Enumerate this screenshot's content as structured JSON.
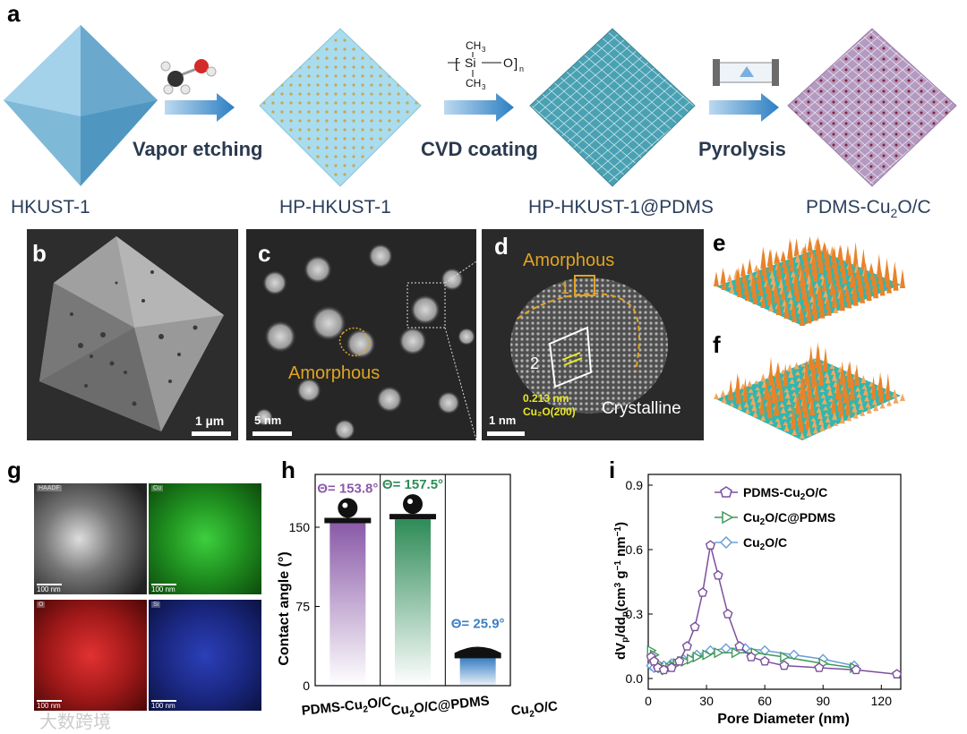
{
  "panel_a": {
    "letter": "a",
    "steps": [
      "Vapor etching",
      "CVD coating",
      "Pyrolysis"
    ],
    "captions": {
      "hkust1": "HKUST-1",
      "hp_hkust1": "HP-HKUST-1",
      "hp_pdms": "HP-HKUST-1@PDMS",
      "pdms_cu2o_c_main": "PDMS-Cu",
      "pdms_cu2o_c_sub": "2",
      "pdms_cu2o_c_end": "O/C"
    },
    "pdms_formula": {
      "ch3_top": "CH",
      "ch3_bottom": "CH",
      "three": "3",
      "si": "Si",
      "o": "O",
      "n": "n"
    }
  },
  "panel_b": {
    "letter": "b",
    "scale": "1 µm"
  },
  "panel_c": {
    "letter": "c",
    "scale": "5 nm",
    "annotation": "Amorphous"
  },
  "panel_d": {
    "letter": "d",
    "scale": "1 nm",
    "amorphous": "Amorphous",
    "crystalline": "Crystalline",
    "region1": "1",
    "region2": "2",
    "d_spacing": "0.213 nm",
    "plane": "Cu₂O(200)"
  },
  "panel_e": {
    "letter": "e"
  },
  "panel_f": {
    "letter": "f"
  },
  "panel_g": {
    "letter": "g",
    "scale": "100 nm",
    "maps": [
      "HAADF",
      "Cu",
      "O",
      "Si"
    ]
  },
  "panel_h": {
    "letter": "h",
    "chart_data": {
      "type": "bar",
      "categories": [
        "PDMS-Cu2O/C",
        "Cu2O/C@PDMS",
        "Cu2O/C"
      ],
      "values": [
        153.8,
        157.5,
        25.9
      ],
      "value_labels": [
        "Θ= 153.8°",
        "Θ= 157.5°",
        "Θ= 25.9°"
      ],
      "colors": [
        "#8a5aa8",
        "#2e8b57",
        "#3a7fc4"
      ],
      "ylabel": "Contact angle (°)",
      "yticks": [
        0,
        75,
        150
      ],
      "ylim": [
        0,
        200
      ]
    },
    "cat_labels": [
      {
        "a": "PDMS-Cu",
        "b": "2",
        "c": "O/C"
      },
      {
        "a": "Cu",
        "b": "2",
        "c": "O/C@PDMS"
      },
      {
        "a": "Cu",
        "b": "2",
        "c": "O/C"
      }
    ]
  },
  "panel_i": {
    "letter": "i",
    "chart_data": {
      "type": "line",
      "xlabel": "Pore Diameter (nm)",
      "ylabel": "dVp/ddp (cm³ g⁻¹ nm⁻¹)",
      "xlim": [
        0,
        130
      ],
      "ylim": [
        -0.05,
        0.95
      ],
      "xticks": [
        0,
        30,
        60,
        90,
        120
      ],
      "yticks": [
        0.0,
        0.3,
        0.6,
        0.9
      ],
      "series": [
        {
          "name": "PDMS-Cu2O/C",
          "color": "#7b4f9e",
          "marker": "pentagon",
          "x": [
            1.5,
            3,
            5,
            8,
            12,
            16,
            20,
            24,
            28,
            32,
            36,
            41,
            47,
            53,
            60,
            70,
            88,
            107,
            128
          ],
          "y": [
            0.1,
            0.08,
            0.05,
            0.04,
            0.05,
            0.08,
            0.15,
            0.24,
            0.4,
            0.62,
            0.48,
            0.3,
            0.15,
            0.1,
            0.08,
            0.06,
            0.05,
            0.04,
            0.02
          ]
        },
        {
          "name": "Cu2O/C@PDMS",
          "color": "#3f9a5a",
          "marker": "triangle-right",
          "x": [
            1.5,
            3,
            5,
            7,
            9,
            11,
            13,
            15,
            17,
            19,
            22,
            25,
            30,
            36,
            45,
            55,
            70,
            90,
            106
          ],
          "y": [
            0.13,
            0.11,
            0.07,
            0.05,
            0.04,
            0.05,
            0.06,
            0.07,
            0.08,
            0.08,
            0.09,
            0.1,
            0.11,
            0.12,
            0.12,
            0.12,
            0.1,
            0.07,
            0.05
          ]
        },
        {
          "name": "Cu2O/C",
          "color": "#6a9fd8",
          "marker": "diamond",
          "x": [
            1.5,
            3,
            5,
            8,
            12,
            18,
            25,
            32,
            40,
            50,
            60,
            75,
            90,
            106
          ],
          "y": [
            0.06,
            0.05,
            0.05,
            0.06,
            0.07,
            0.09,
            0.11,
            0.13,
            0.14,
            0.14,
            0.13,
            0.11,
            0.09,
            0.06
          ]
        }
      ]
    },
    "legend": [
      {
        "a": "PDMS-Cu",
        "b": "2",
        "c": "O/C"
      },
      {
        "a": "Cu",
        "b": "2",
        "c": "O/C@PDMS"
      },
      {
        "a": "Cu",
        "b": "2",
        "c": "O/C"
      }
    ],
    "ylabel_parts": {
      "a": "dV",
      "p1": "p",
      "b": "/dd",
      "p2": "p",
      "c": "(cm",
      "s3": "3",
      "d": " g",
      "sm1": "−1",
      "e": " nm",
      "sm1b": "−1",
      "f": ")"
    }
  },
  "watermark": "大数跨境"
}
